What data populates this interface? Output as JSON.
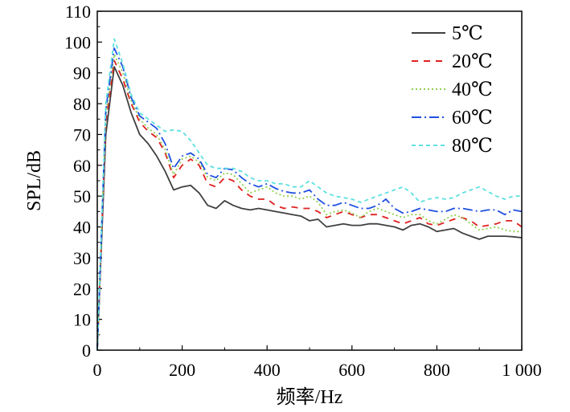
{
  "chart_data": {
    "type": "line",
    "title": "",
    "xlabel": "频率/Hz",
    "ylabel": "SPL/dB",
    "xlim": [
      0,
      1000
    ],
    "ylim": [
      0,
      110
    ],
    "x_ticks": [
      0,
      200,
      400,
      600,
      800,
      1000
    ],
    "x_tick_labels": [
      "0",
      "200",
      "400",
      "600",
      "800",
      "1 000"
    ],
    "y_ticks": [
      0,
      10,
      20,
      30,
      40,
      50,
      60,
      70,
      80,
      90,
      100,
      110
    ],
    "y_tick_labels": [
      "0",
      "10",
      "20",
      "30",
      "40",
      "50",
      "60",
      "70",
      "80",
      "90",
      "100",
      "110"
    ],
    "grid": false,
    "legend_position": "top-right",
    "x": [
      0,
      20,
      40,
      60,
      80,
      100,
      120,
      140,
      160,
      180,
      200,
      220,
      240,
      260,
      280,
      300,
      320,
      340,
      360,
      380,
      400,
      420,
      440,
      460,
      480,
      500,
      520,
      540,
      560,
      580,
      600,
      620,
      640,
      660,
      680,
      700,
      720,
      740,
      760,
      780,
      800,
      820,
      840,
      860,
      880,
      900,
      920,
      940,
      960,
      980,
      1000
    ],
    "series": [
      {
        "name": "5℃",
        "color": "#404040",
        "dash": "solid",
        "values": [
          0,
          70,
          92,
          86,
          77,
          70,
          67,
          63,
          58,
          52,
          53,
          53.5,
          51,
          47,
          46,
          48.5,
          47,
          46,
          45.5,
          46,
          45.5,
          45,
          44.5,
          44,
          43.5,
          42,
          42.5,
          40,
          40.5,
          41,
          40.5,
          40.5,
          41,
          41,
          40.5,
          40,
          39,
          40.5,
          41,
          40,
          38.5,
          39,
          39.5,
          38,
          37,
          36,
          37,
          37,
          37,
          36.8,
          36.5
        ]
      },
      {
        "name": "20℃",
        "color": "#e02020",
        "dash": "8,7",
        "values": [
          0,
          74,
          94,
          88,
          80,
          74,
          71,
          69,
          64,
          56,
          60,
          62,
          60,
          54,
          53,
          56,
          55,
          52,
          50,
          49,
          49,
          47,
          46,
          46.5,
          46,
          46,
          45,
          43,
          44,
          45,
          44,
          43,
          44,
          44,
          43,
          42,
          41,
          42,
          43,
          41,
          40.5,
          41.5,
          42.5,
          43,
          42,
          40,
          40.5,
          41,
          42,
          42,
          40
        ]
      },
      {
        "name": "40℃",
        "color": "#8fd14f",
        "dash": "2,3",
        "values": [
          0,
          76,
          96,
          90,
          81,
          75,
          72,
          70,
          65,
          57,
          62,
          63,
          61,
          56,
          55,
          57.5,
          57,
          54,
          51,
          52,
          53,
          51,
          50,
          50,
          49,
          50,
          48,
          44,
          45,
          45.5,
          44.5,
          43,
          45,
          46,
          45,
          44,
          43,
          44,
          44,
          42,
          41,
          42.5,
          44,
          43,
          41,
          39,
          39.5,
          40,
          39,
          38.5,
          38.5
        ]
      },
      {
        "name": "60℃",
        "color": "#2050e0",
        "dash": "12,4,2,4",
        "values": [
          0,
          78,
          98,
          92,
          82,
          76,
          74,
          72,
          67,
          59,
          63,
          64,
          62,
          57,
          56,
          59,
          58.5,
          56,
          54,
          53,
          54,
          52.5,
          51.5,
          51,
          51,
          52,
          49,
          47,
          47,
          48,
          47,
          46,
          46,
          47,
          49,
          46,
          44.5,
          45,
          46,
          45.5,
          45,
          45,
          46,
          46,
          45.5,
          45,
          45.5,
          45.5,
          44,
          45.5,
          45
        ]
      },
      {
        "name": "80℃",
        "color": "#5fe0e0",
        "dash": "5,4",
        "values": [
          0,
          80,
          101,
          93,
          83,
          77,
          75,
          73,
          71,
          71.5,
          71,
          68,
          64,
          60,
          59,
          59,
          59,
          58,
          56,
          55,
          55,
          54,
          54,
          53,
          53,
          55,
          53,
          51,
          50,
          49.5,
          49,
          48,
          49,
          50,
          51,
          52,
          53,
          51,
          48,
          49,
          49.5,
          49,
          49.5,
          51,
          52,
          53,
          51.5,
          50,
          49,
          50,
          50
        ]
      }
    ]
  }
}
